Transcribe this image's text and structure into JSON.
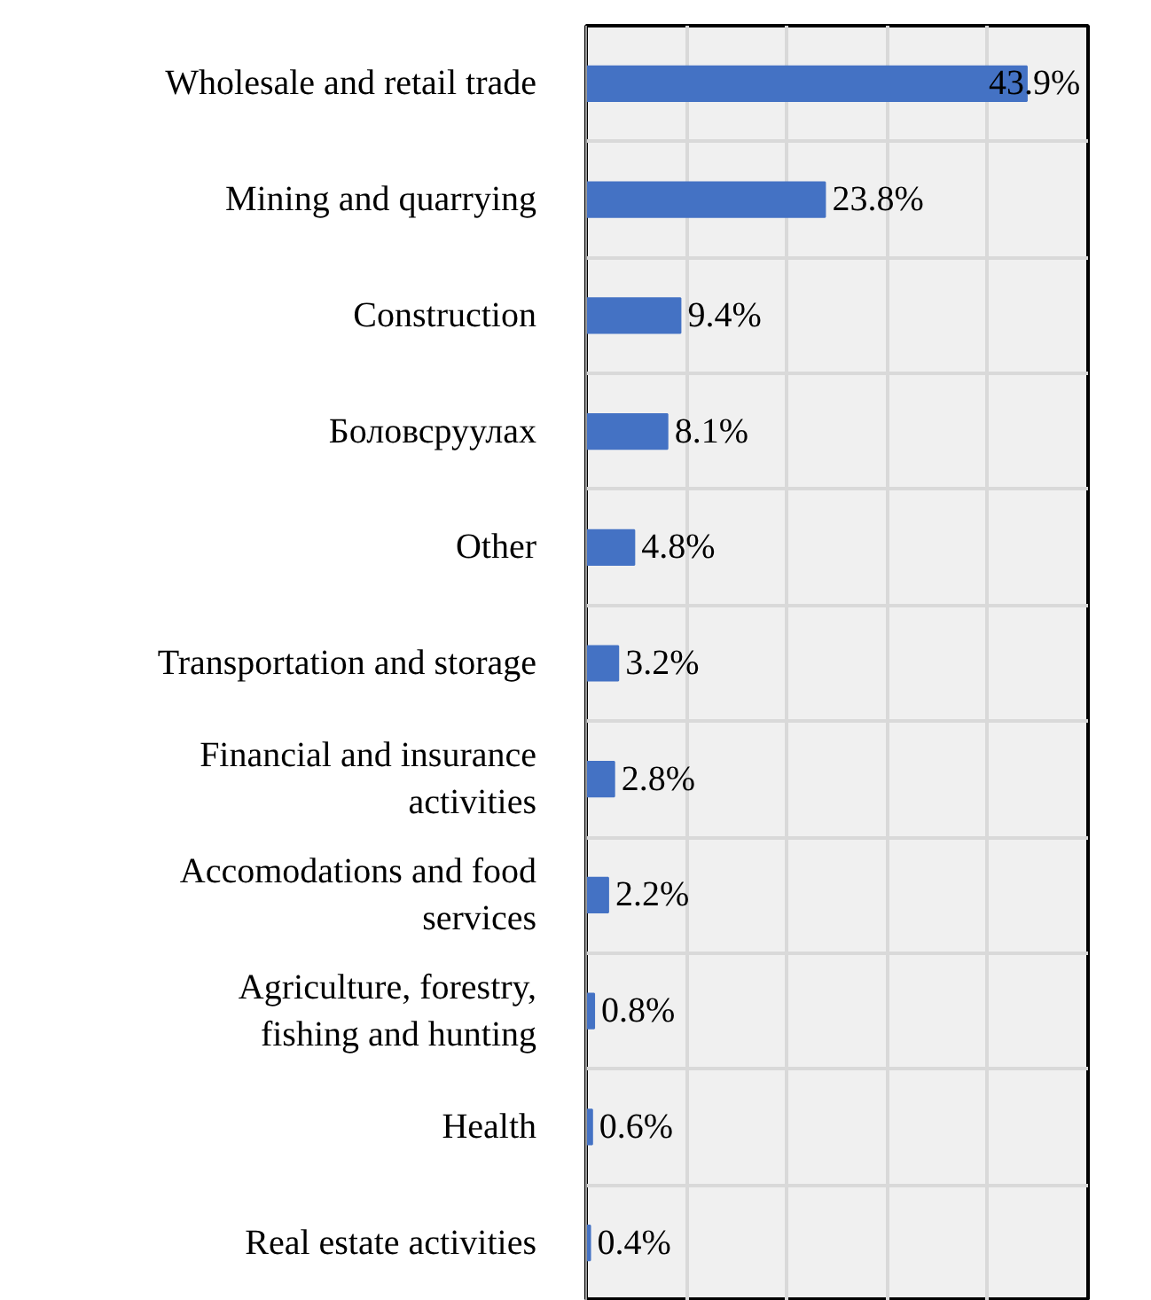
{
  "chart_data": {
    "type": "bar",
    "orientation": "horizontal",
    "categories": [
      "Wholesale and retail trade",
      "Mining and quarrying",
      "Construction",
      "Боловсруулах",
      "Other",
      "Transportation and storage",
      "Financial and insurance activities",
      "Accomodations and food services",
      "Agriculture, forestry, fishing and hunting",
      "Health",
      "Real estate activities"
    ],
    "values": [
      43.9,
      23.8,
      9.4,
      8.1,
      4.8,
      3.2,
      2.8,
      2.2,
      0.8,
      0.6,
      0.4
    ],
    "color": "#4472c4",
    "value_labels": [
      "43.9%",
      "23.8%",
      "9.4%",
      "8.1%",
      "4.8%",
      "3.2%",
      "2.8%",
      "2.2%",
      "0.8%",
      "0.6%",
      "0.4%"
    ],
    "xlim": [
      0,
      50
    ],
    "xticks": [
      {
        "value": 0,
        "label": null
      },
      {
        "value": 10,
        "label": null
      },
      {
        "value": 20,
        "label": null
      },
      {
        "value": 30,
        "label": null
      },
      {
        "value": 40,
        "label": null
      }
    ],
    "tick_labels": "y",
    "grid": true
  }
}
